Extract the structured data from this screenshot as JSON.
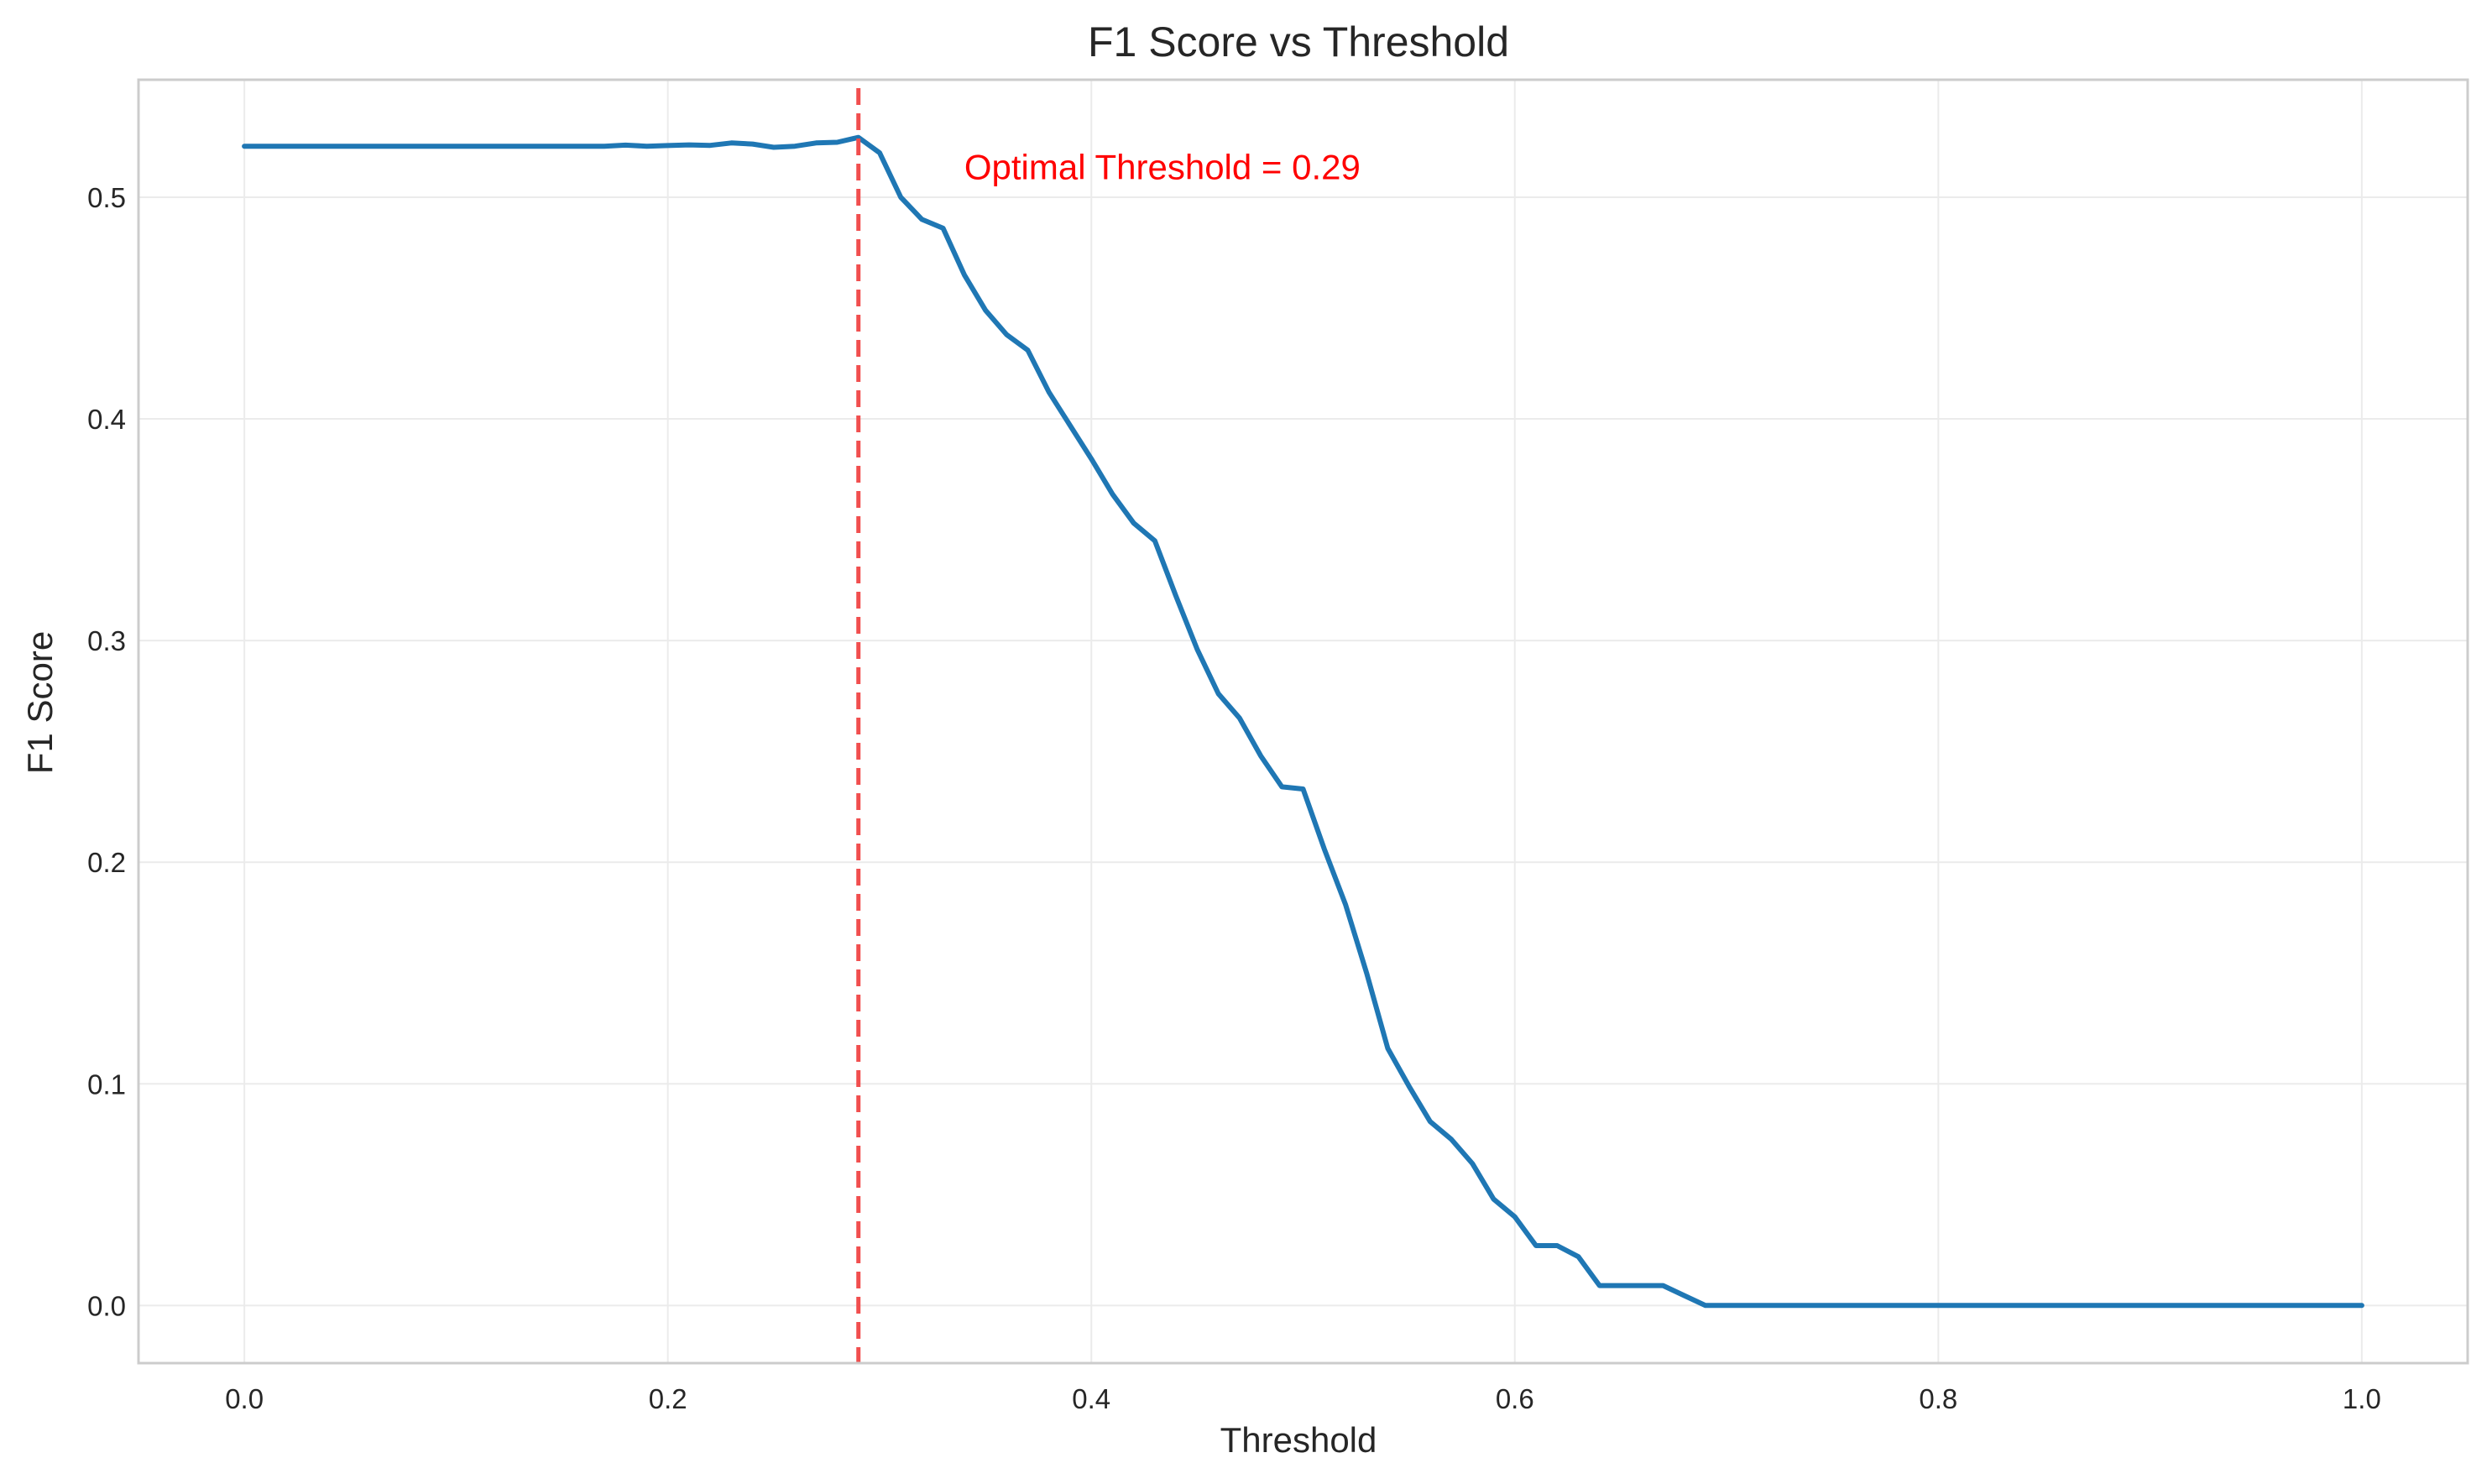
{
  "chart_data": {
    "type": "line",
    "title": "F1 Score vs Threshold",
    "xlabel": "Threshold",
    "ylabel": "F1 Score",
    "xlim": [
      -0.05,
      1.05
    ],
    "ylim": [
      -0.026,
      0.553
    ],
    "xticks": [
      0.0,
      0.2,
      0.4,
      0.6,
      0.8,
      1.0
    ],
    "xtick_labels": [
      "0.0",
      "0.2",
      "0.4",
      "0.6",
      "0.8",
      "1.0"
    ],
    "yticks": [
      0.0,
      0.1,
      0.2,
      0.3,
      0.4,
      0.5
    ],
    "ytick_labels": [
      "0.0",
      "0.1",
      "0.2",
      "0.3",
      "0.4",
      "0.5"
    ],
    "grid": true,
    "series": [
      {
        "color": "#1f77b4",
        "x": [
          0.0,
          0.01,
          0.02,
          0.03,
          0.04,
          0.05,
          0.06,
          0.07,
          0.08,
          0.09,
          0.1,
          0.11,
          0.12,
          0.13,
          0.14,
          0.15,
          0.16,
          0.17,
          0.18,
          0.19,
          0.2,
          0.21,
          0.22,
          0.23,
          0.24,
          0.25,
          0.26,
          0.27,
          0.28,
          0.29,
          0.3,
          0.31,
          0.32,
          0.33,
          0.34,
          0.35,
          0.36,
          0.37,
          0.38,
          0.39,
          0.4,
          0.41,
          0.42,
          0.43,
          0.44,
          0.45,
          0.46,
          0.47,
          0.48,
          0.49,
          0.5,
          0.51,
          0.52,
          0.53,
          0.54,
          0.55,
          0.56,
          0.57,
          0.58,
          0.59,
          0.6,
          0.61,
          0.62,
          0.63,
          0.64,
          0.65,
          0.66,
          0.67,
          0.68,
          0.69,
          0.7,
          0.71,
          0.72,
          0.73,
          0.74,
          0.75,
          0.76,
          0.77,
          0.78,
          0.79,
          0.8,
          0.81,
          0.82,
          0.83,
          0.84,
          0.85,
          0.86,
          0.87,
          0.88,
          0.89,
          0.9,
          0.91,
          0.92,
          0.93,
          0.94,
          0.95,
          0.96,
          0.97,
          0.98,
          0.99,
          1.0
        ],
        "y": [
          0.523,
          0.523,
          0.523,
          0.523,
          0.523,
          0.523,
          0.523,
          0.523,
          0.523,
          0.523,
          0.523,
          0.523,
          0.523,
          0.523,
          0.523,
          0.523,
          0.523,
          0.523,
          0.5235,
          0.523,
          0.5233,
          0.5236,
          0.5234,
          0.5245,
          0.524,
          0.5225,
          0.523,
          0.5245,
          0.5248,
          0.527,
          0.52,
          0.5,
          0.49,
          0.486,
          0.465,
          0.449,
          0.438,
          0.431,
          0.412,
          0.397,
          0.382,
          0.366,
          0.353,
          0.345,
          0.32,
          0.296,
          0.276,
          0.265,
          0.248,
          0.234,
          0.233,
          0.206,
          0.181,
          0.15,
          0.116,
          0.099,
          0.083,
          0.075,
          0.064,
          0.048,
          0.04,
          0.027,
          0.027,
          0.022,
          0.009,
          0.009,
          0.009,
          0.009,
          0.0045,
          0.0,
          0.0,
          0.0,
          0.0,
          0.0,
          0.0,
          0.0,
          0.0,
          0.0,
          0.0,
          0.0,
          0.0,
          0.0,
          0.0,
          0.0,
          0.0,
          0.0,
          0.0,
          0.0,
          0.0,
          0.0,
          0.0,
          0.0,
          0.0,
          0.0,
          0.0,
          0.0,
          0.0,
          0.0,
          0.0,
          0.0,
          0.0
        ]
      }
    ],
    "vline": {
      "x": 0.29,
      "color": "#f14e4e",
      "style": "dashed"
    },
    "annotation": {
      "text": "Optimal Threshold = 0.29",
      "x": 0.34,
      "y": 0.5135,
      "color": "#ff0000"
    }
  }
}
